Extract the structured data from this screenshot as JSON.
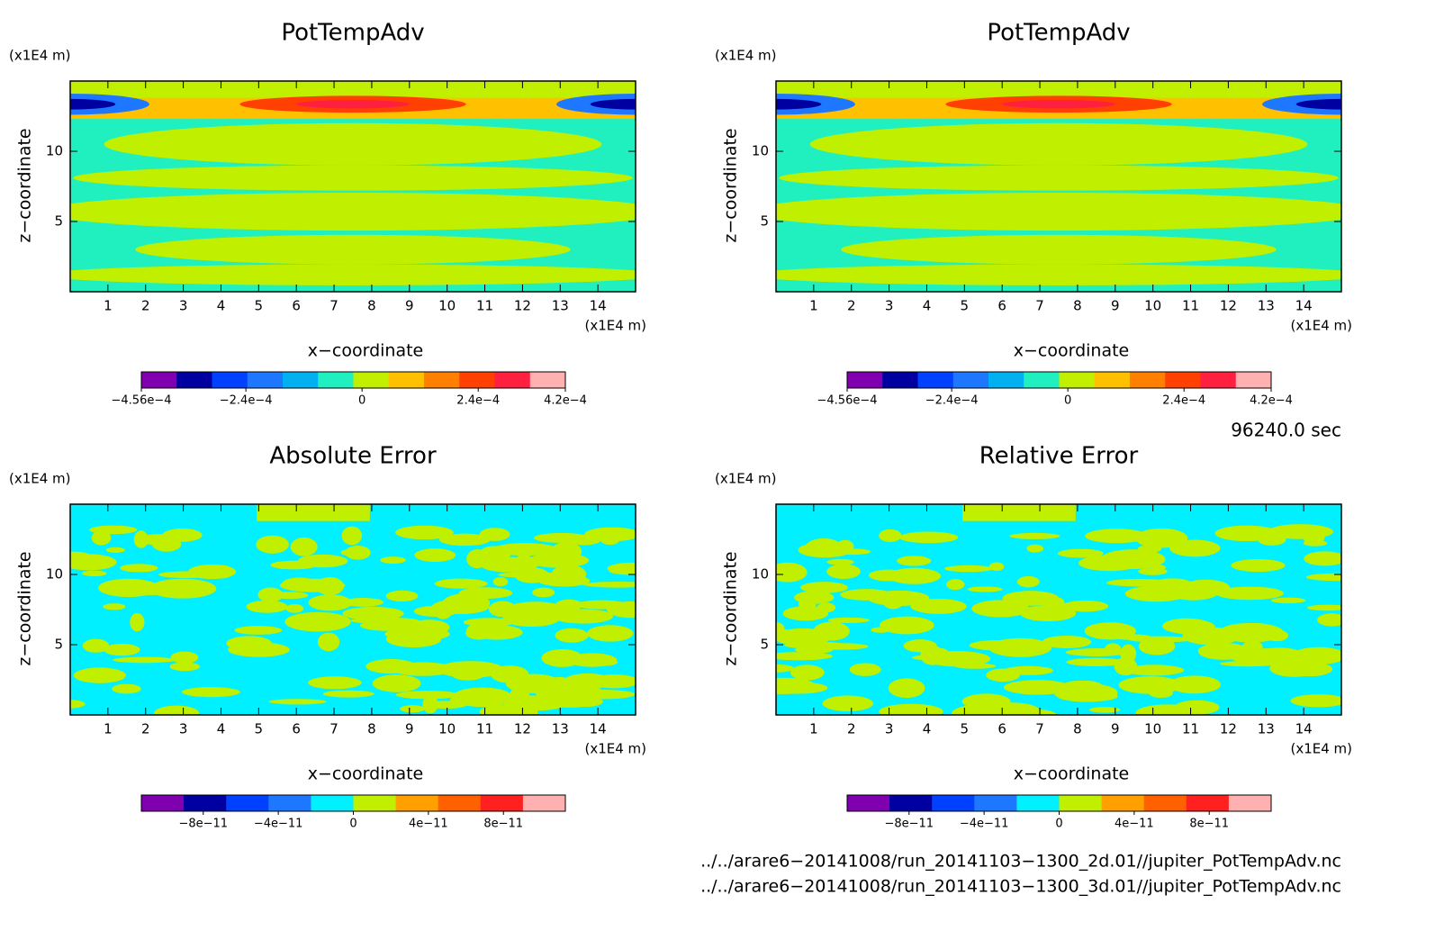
{
  "chart_data": [
    {
      "type": "contour",
      "title": "PotTempAdv",
      "xlabel": "x−coordinate",
      "ylabel": "z−coordinate",
      "xunit": "(x1E4 m)",
      "yunit": "(x1E4 m)",
      "xlim": [
        0,
        15
      ],
      "xticks": [
        1,
        2,
        3,
        4,
        5,
        6,
        7,
        8,
        9,
        10,
        11,
        12,
        13,
        14
      ],
      "ylim": [
        0,
        15
      ],
      "yticks": [
        5,
        10
      ],
      "colorbar": {
        "colors": [
          "#8000b0",
          "#0000a0",
          "#0040ff",
          "#1e78ff",
          "#00b0f0",
          "#20f0c0",
          "#c0f000",
          "#ffc000",
          "#ff8000",
          "#ff4000",
          "#ff2040",
          "#ffb0b0"
        ],
        "lim": [
          -0.000456,
          0.00042
        ],
        "ticks": [
          {
            "value": -0.000456,
            "label": "−4.56e−4"
          },
          {
            "value": -0.00024,
            "label": "−2.4e−4"
          },
          0,
          {
            "value": 0.00024,
            "label": "2.4e−4"
          },
          {
            "value": 0.00042,
            "label": "4.2e−4"
          }
        ]
      }
    },
    {
      "type": "contour",
      "title": "PotTempAdv",
      "xlabel": "x−coordinate",
      "ylabel": "z−coordinate",
      "xunit": "(x1E4 m)",
      "yunit": "(x1E4 m)",
      "xlim": [
        0,
        15
      ],
      "xticks": [
        1,
        2,
        3,
        4,
        5,
        6,
        7,
        8,
        9,
        10,
        11,
        12,
        13,
        14
      ],
      "ylim": [
        0,
        15
      ],
      "yticks": [
        5,
        10
      ],
      "colorbar": {
        "colors": [
          "#8000b0",
          "#0000a0",
          "#0040ff",
          "#1e78ff",
          "#00b0f0",
          "#20f0c0",
          "#c0f000",
          "#ffc000",
          "#ff8000",
          "#ff4000",
          "#ff2040",
          "#ffb0b0"
        ],
        "lim": [
          -0.000456,
          0.00042
        ],
        "ticks": [
          {
            "value": -0.000456,
            "label": "−4.56e−4"
          },
          {
            "value": -0.00024,
            "label": "−2.4e−4"
          },
          0,
          {
            "value": 0.00024,
            "label": "2.4e−4"
          },
          {
            "value": 0.00042,
            "label": "4.2e−4"
          }
        ]
      }
    },
    {
      "type": "contour",
      "title": "Absolute Error",
      "xlabel": "x−coordinate",
      "ylabel": "z−coordinate",
      "xunit": "(x1E4 m)",
      "yunit": "(x1E4 m)",
      "xlim": [
        0,
        15
      ],
      "xticks": [
        1,
        2,
        3,
        4,
        5,
        6,
        7,
        8,
        9,
        10,
        11,
        12,
        13,
        14
      ],
      "ylim": [
        0,
        15
      ],
      "yticks": [
        5,
        10
      ],
      "colorbar": {
        "colors": [
          "#8000b0",
          "#0000a0",
          "#0040ff",
          "#1e78ff",
          "#00f0ff",
          "#c0f000",
          "#ffa000",
          "#ff6000",
          "#ff2020",
          "#ffb0b0"
        ],
        "lim": [
          -1.13e-10,
          1.13e-10
        ],
        "ticks": [
          {
            "value": -8e-11,
            "label": "−8e−11"
          },
          {
            "value": -4e-11,
            "label": "−4e−11"
          },
          0,
          {
            "value": 4e-11,
            "label": "4e−11"
          },
          {
            "value": 8e-11,
            "label": "8e−11"
          }
        ]
      }
    },
    {
      "type": "contour",
      "title": "Relative Error",
      "xlabel": "x−coordinate",
      "ylabel": "z−coordinate",
      "xunit": "(x1E4 m)",
      "yunit": "(x1E4 m)",
      "xlim": [
        0,
        15
      ],
      "xticks": [
        1,
        2,
        3,
        4,
        5,
        6,
        7,
        8,
        9,
        10,
        11,
        12,
        13,
        14
      ],
      "ylim": [
        0,
        15
      ],
      "yticks": [
        5,
        10
      ],
      "colorbar": {
        "colors": [
          "#8000b0",
          "#0000a0",
          "#0040ff",
          "#1e78ff",
          "#00f0ff",
          "#c0f000",
          "#ffa000",
          "#ff6000",
          "#ff2020",
          "#ffb0b0"
        ],
        "lim": [
          -1.13e-10,
          1.13e-10
        ],
        "ticks": [
          {
            "value": -8e-11,
            "label": "−8e−11"
          },
          {
            "value": -4e-11,
            "label": "−4e−11"
          },
          0,
          {
            "value": 4e-11,
            "label": "4e−11"
          },
          {
            "value": 8e-11,
            "label": "8e−11"
          }
        ]
      }
    }
  ],
  "footer": {
    "time": "96240.0 sec",
    "files": [
      "../../arare6−20141008/run_20141103−1300_2d.01//jupiter_PotTempAdv.nc",
      "../../arare6−20141008/run_20141103−1300_3d.01//jupiter_PotTempAdv.nc"
    ]
  }
}
